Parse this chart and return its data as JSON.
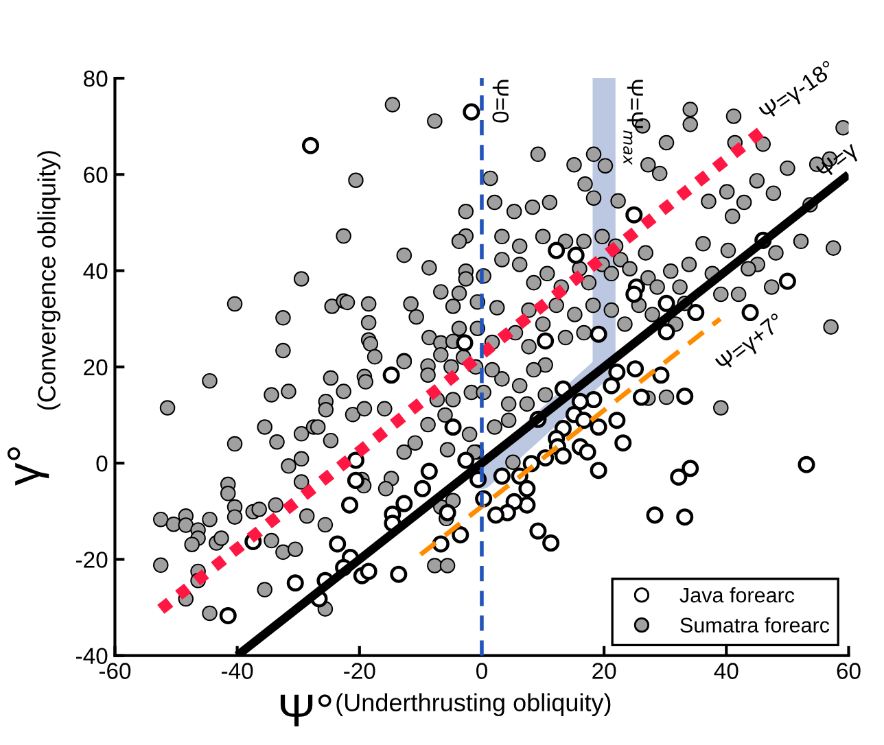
{
  "chart_data": {
    "type": "scatter",
    "xlabel": "Ψ°",
    "ylabel": "γ°",
    "annotations": [
      "(Convergence obliquity)",
      "(Underthrusting obliquity)"
    ],
    "xlim": [
      -60,
      60
    ],
    "xticks": [
      -60,
      -40,
      -20,
      0,
      20,
      40,
      60
    ],
    "ylim": [
      -40,
      80
    ],
    "yticks": [
      -40,
      -20,
      0,
      20,
      40,
      60,
      80
    ],
    "grid": false,
    "legend": "bottom right",
    "marker": "circle",
    "ref_lines": [
      {
        "axis": "x",
        "value": 0,
        "label": "Ψ=0",
        "color": "#2255bb",
        "line_style": "dashed"
      }
    ],
    "series": [
      {
        "type": "line",
        "marker": "none",
        "name": "Ψ=Ψ$_{max}$",
        "color": "#b8c4e0",
        "x": [
          0,
          20,
          20
        ],
        "values": [
          -3,
          20,
          80
        ]
      },
      {
        "type": "line",
        "marker": "none",
        "name": "Ψ=γ-18°",
        "color": "#ff1744",
        "line_style": "dotted",
        "x": [
          -52.5,
          46
        ],
        "values": [
          -30.4,
          69.2
        ]
      },
      {
        "type": "line",
        "marker": "none",
        "name": "Ψ=γ",
        "color": "#000000",
        "x": [
          -40,
          60
        ],
        "values": [
          -40,
          60
        ]
      },
      {
        "type": "line",
        "marker": "none",
        "name": "Ψ=γ+7°",
        "color": "#ff8c00",
        "line_style": "dashed",
        "x": [
          -10,
          39
        ],
        "values": [
          -19,
          30
        ]
      },
      {
        "name": "Sumatra forearc",
        "color": "#a0a0a0",
        "x": [
          -14.6,
          -7.7,
          -20.6,
          -22.6,
          -2.6,
          -2.6,
          -3.7,
          -12.7,
          -8.6,
          -29.5,
          -2.6,
          -2.6,
          -6.7,
          -3.7,
          -40.4,
          -32.5,
          -24.5,
          -22.6,
          -22,
          -18.5,
          -11.6,
          -10.7,
          -4.7,
          -0.7,
          -18.5,
          -18.5,
          -18.2,
          -32.5,
          -17.5,
          -8.6,
          -6.7,
          -3.7,
          -4.7,
          -0.7,
          -12.7,
          -6.7,
          -44.5,
          -51.4,
          -34.4,
          -31.6,
          -24.7,
          -22.6,
          -19.2,
          -19,
          -25.5,
          -25.5,
          -21.1,
          -19.2,
          -15.9,
          -12.7,
          -8.8,
          -8.8,
          -7.3,
          -4.7,
          -1.7,
          -8.8,
          -12.7,
          -10.9,
          -5.6,
          -0.9,
          -35.5,
          -33.5,
          -29.5,
          -27.5,
          -26.8,
          -24.7,
          -29.5,
          -31.6,
          -40.4,
          -41.5,
          -41.5,
          -40.4,
          -40.4,
          -37.4,
          -36.4,
          -33.7,
          -29.5,
          -28.6,
          -25.6,
          -19.6,
          -19.3,
          -14.8,
          -15.7,
          -52.5,
          -50.4,
          -48.4,
          -48.4,
          -46.4,
          -46.4,
          -47.4,
          -44.5,
          -43.4,
          -42.6,
          -52.5,
          -46.4,
          -46.4,
          -48.4,
          -44.5,
          -35.5,
          -32.5,
          -30.5,
          -34.4,
          -25.6,
          -7.7,
          -5.6,
          -6.7,
          -4.7,
          -5.8,
          -5,
          -3,
          -1,
          -6,
          -2,
          34.1,
          41.2,
          34.1,
          26.3,
          59.1,
          30.2,
          41.4,
          46.0,
          9.2,
          18.3,
          15.1,
          20.2,
          27.2,
          1.4,
          16.9,
          29.1,
          45.0,
          50.0,
          54.8,
          56.9,
          2.1,
          5.3,
          8.3,
          11.1,
          18.3,
          22.3,
          37.1,
          40.1,
          42.9,
          47.7,
          53.7,
          57.5,
          52.2,
          48.1,
          39.1,
          42.0,
          47.4,
          57.1,
          45.1,
          41.0,
          36.2,
          33.9,
          30.9,
          26.8,
          2.5,
          0.3,
          3.3,
          6.2,
          8.5,
          10.7,
          13.0,
          16.0,
          17.5,
          19.7,
          21.2,
          22.7,
          24.2,
          21.9,
          19.7,
          16.7,
          13.7,
          10.0,
          6.2,
          3.3,
          7.7,
          12.2,
          15.2,
          18.2,
          21.2,
          16.7,
          13.7,
          10.0,
          5.5,
          1.7,
          7.7,
          23.4,
          25.7,
          27.2,
          28.7,
          32.4,
          33.2,
          27.9,
          31.7,
          37.7,
          40.3,
          43.6,
          10.4,
          8.5,
          6.2,
          3.3,
          1.7,
          0.3,
          4.4,
          7.4,
          10.4,
          2.1,
          4.4,
          -1.2,
          5.1,
          39.1,
          30.2,
          27.2
        ],
        "values": [
          74.5,
          71.1,
          58.8,
          47.2,
          52.3,
          47.2,
          46.1,
          43.2,
          40.6,
          38.3,
          39.9,
          38.3,
          35.6,
          35.3,
          33.1,
          30.2,
          32.6,
          33.7,
          33.4,
          33.1,
          33.1,
          30.4,
          32.6,
          33.5,
          29.2,
          25.6,
          24.8,
          23.4,
          22.1,
          26.1,
          25.0,
          28.0,
          25.3,
          28.0,
          21.3,
          22.5,
          17.1,
          11.5,
          14.2,
          14.9,
          17.7,
          14.9,
          18.0,
          16.9,
          12.8,
          11.1,
          10.1,
          11.3,
          11.3,
          21.1,
          20.2,
          18.3,
          13.2,
          13.2,
          14.7,
          8.0,
          2.3,
          4.2,
          2.8,
          2.3,
          7.5,
          4.4,
          6.1,
          7.5,
          7.5,
          4.7,
          0.9,
          -0.6,
          4.0,
          -4.4,
          -6.3,
          -9.1,
          -11.2,
          -10.1,
          -9.6,
          -8.7,
          -3.9,
          -11.0,
          -12.8,
          -3.4,
          -4.7,
          -3.2,
          -5.3,
          -11.7,
          -12.7,
          -11.0,
          -12.9,
          -13.9,
          -15.6,
          -16.9,
          -11.7,
          -16.6,
          -15.6,
          -21.2,
          -22.5,
          -24.4,
          -28.2,
          -31.2,
          -26.3,
          -18.5,
          -17.9,
          -16.1,
          -30.3,
          -21.3,
          -21.3,
          -9.1,
          -7.8,
          -11.5,
          20,
          22,
          20,
          10,
          6,
          73.5,
          72.1,
          70.4,
          70.1,
          69.7,
          66.6,
          66.6,
          66.3,
          64.2,
          64.2,
          62.0,
          61.8,
          62.0,
          59.2,
          58.0,
          60.2,
          58.7,
          61.3,
          62.1,
          63.2,
          54.2,
          52.3,
          53.2,
          54.2,
          55.1,
          54.5,
          54.4,
          56.4,
          54.2,
          56.1,
          53.7,
          44.7,
          46.1,
          43.7,
          35.1,
          35.1,
          36.6,
          28.3,
          41.3,
          51.3,
          45.6,
          41.3,
          39.9,
          43.7,
          32.3,
          38.9,
          42.3,
          41.3,
          37.5,
          39.4,
          36.6,
          40.4,
          37.5,
          41.3,
          39.4,
          42.3,
          40.4,
          45.1,
          47.1,
          46.1,
          46.1,
          47.1,
          45.1,
          47.1,
          31.8,
          32.8,
          30.9,
          32.8,
          31.8,
          27.1,
          26.1,
          28.9,
          27.1,
          25.1,
          24.2,
          28.9,
          32.8,
          38.5,
          36.6,
          36.6,
          33.2,
          30.9,
          28.9,
          39.4,
          44.2,
          40.4,
          20.4,
          19.4,
          16.1,
          17.5,
          19.4,
          14.7,
          12.3,
          12.3,
          14.2,
          7.5,
          8.9,
          2.3,
          0.2,
          11.5,
          13.7,
          13.5
        ]
      },
      {
        "name": "Java forearc",
        "color": "#ffffff",
        "x": [
          -28,
          -1.7,
          -2.8,
          -14.8,
          -4.7,
          -2.6,
          -8.6,
          -20.6,
          -20.6,
          -9.7,
          -12.7,
          -21.6,
          -14.6,
          -14.6,
          -5.6,
          -3.5,
          -6.7,
          -37.4,
          -23.6,
          -21.5,
          -22.6,
          -19.6,
          -18.5,
          -13.6,
          -25.6,
          -30.5,
          -26.6,
          -41.5,
          24.9,
          15.4,
          12.2,
          25.3,
          24.9,
          30.2,
          35.0,
          43.9,
          46.0,
          50.0,
          19.1,
          30.2,
          10.4,
          29.3,
          25.1,
          22.1,
          21.2,
          26.1,
          33.2,
          18.3,
          16.1,
          13.3,
          15.1,
          16.7,
          19.1,
          22.1,
          13.3,
          23.1,
          16.1,
          17.3,
          12.2,
          12.4,
          13.3,
          9.2,
          10.4,
          8.1,
          6.2,
          3.3,
          7.4,
          7.4,
          5.3,
          4.2,
          2.3,
          0.3,
          -0.6,
          9.2,
          11.3,
          19.1,
          28.3,
          33.2,
          32.2,
          34.1,
          53.1
        ],
        "values": [
          66,
          73,
          25,
          18.3,
          7.5,
          0.6,
          -1.7,
          0.6,
          -3.6,
          -5.3,
          -8.4,
          -8.7,
          -10.6,
          -12.5,
          -10.3,
          -14.9,
          -16.8,
          -16.3,
          -16.8,
          -19.6,
          -21.7,
          -23.4,
          -22.5,
          -23.1,
          -24.4,
          -24.9,
          -28.2,
          -31.7,
          51.6,
          43.2,
          44.2,
          36.6,
          35.1,
          33.2,
          31.3,
          31.3,
          46.3,
          37.8,
          26.8,
          27.3,
          25.4,
          18.3,
          19.6,
          18.9,
          16.1,
          13.7,
          13.9,
          13.2,
          12.8,
          15.4,
          10.1,
          8.9,
          7.5,
          8.9,
          7.2,
          4.2,
          3.4,
          2.3,
          5.1,
          3.4,
          1.5,
          9.1,
          1.1,
          -0.1,
          -2.7,
          -2.7,
          -5.3,
          -8.7,
          -8.0,
          -10.3,
          -10.8,
          -7.4,
          -3.4,
          -14.1,
          -16.6,
          -1.5,
          -10.8,
          -11.2,
          -2.9,
          -1.1,
          -0.3
        ]
      }
    ]
  }
}
